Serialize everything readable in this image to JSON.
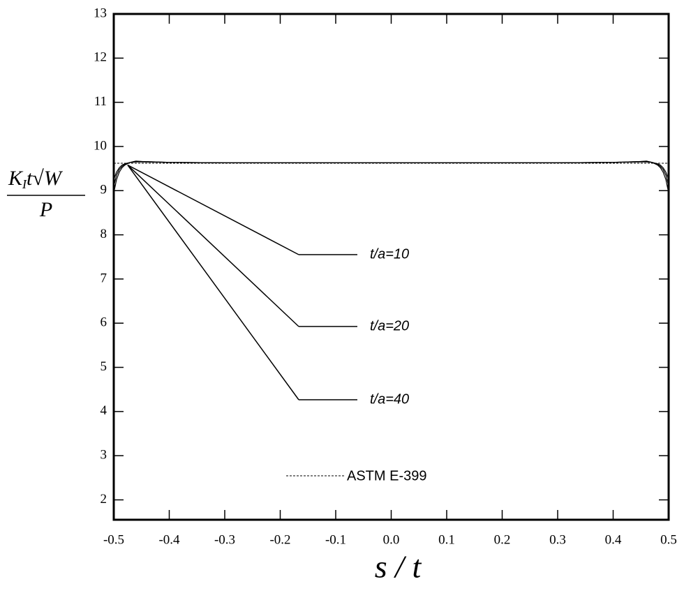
{
  "chart_data": {
    "type": "line",
    "xlabel": "s / t",
    "ylabel": {
      "numerator": [
        "K",
        "I",
        "t",
        "√W"
      ],
      "denominator": "P"
    },
    "x": [
      -0.5,
      -0.495,
      -0.49,
      -0.485,
      -0.48,
      -0.47,
      -0.46,
      -0.45,
      -0.4,
      -0.3,
      -0.2,
      -0.1,
      0,
      0.1,
      0.2,
      0.3,
      0.4,
      0.45,
      0.46,
      0.47,
      0.48,
      0.485,
      0.49,
      0.495,
      0.5
    ],
    "series": [
      {
        "name": "t/a=10",
        "color": "#000000",
        "dash": false,
        "values": [
          9.25,
          9.42,
          9.52,
          9.58,
          9.61,
          9.64,
          9.65,
          9.65,
          9.64,
          9.63,
          9.63,
          9.63,
          9.63,
          9.63,
          9.63,
          9.63,
          9.64,
          9.65,
          9.65,
          9.64,
          9.61,
          9.58,
          9.52,
          9.42,
          9.25
        ]
      },
      {
        "name": "t/a=20",
        "color": "#000000",
        "dash": false,
        "values": [
          9.1,
          9.35,
          9.48,
          9.55,
          9.6,
          9.64,
          9.66,
          9.66,
          9.64,
          9.63,
          9.63,
          9.63,
          9.63,
          9.63,
          9.63,
          9.63,
          9.64,
          9.66,
          9.66,
          9.64,
          9.6,
          9.55,
          9.48,
          9.35,
          9.1
        ]
      },
      {
        "name": "t/a=40",
        "color": "#000000",
        "dash": false,
        "values": [
          8.95,
          9.25,
          9.42,
          9.52,
          9.58,
          9.64,
          9.67,
          9.66,
          9.64,
          9.63,
          9.63,
          9.63,
          9.63,
          9.63,
          9.63,
          9.63,
          9.64,
          9.66,
          9.67,
          9.64,
          9.58,
          9.52,
          9.42,
          9.25,
          8.95
        ]
      },
      {
        "name": "ASTM E-399",
        "color": "#000000",
        "dash": true,
        "values": [
          9.62,
          9.62,
          9.62,
          9.62,
          9.62,
          9.62,
          9.62,
          9.62,
          9.62,
          9.62,
          9.62,
          9.62,
          9.62,
          9.62,
          9.62,
          9.62,
          9.62,
          9.62,
          9.62,
          9.62,
          9.62,
          9.62,
          9.62,
          9.62,
          9.62
        ]
      }
    ],
    "xlim": [
      -0.5,
      0.5
    ],
    "xticks": [
      -0.5,
      -0.4,
      -0.3,
      -0.2,
      -0.1,
      {
        "value": 0,
        "label": "0.0"
      },
      0.1,
      0.2,
      0.3,
      0.4,
      0.5
    ],
    "ylim": [
      1.55,
      13
    ],
    "yticks": [
      2,
      3,
      4,
      5,
      6,
      7,
      8,
      9,
      10,
      11,
      12,
      13
    ]
  }
}
